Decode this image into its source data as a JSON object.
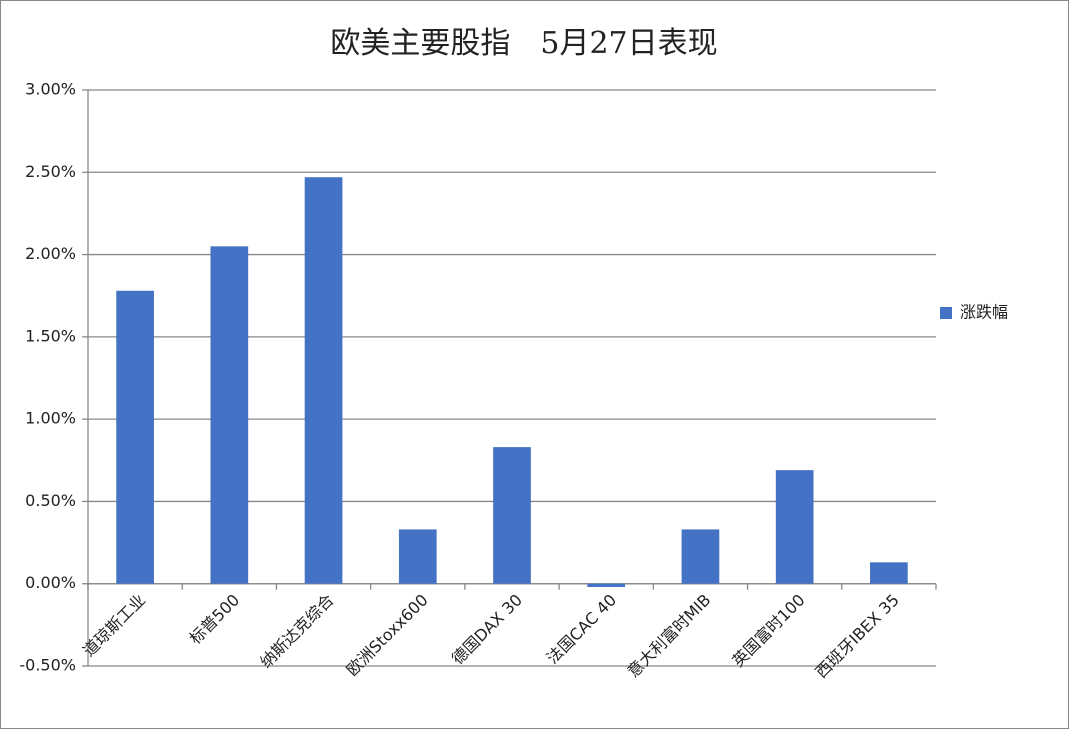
{
  "chart_data": {
    "type": "bar",
    "title": "欧美主要股指　5月27日表现",
    "categories": [
      "道琼斯工业",
      "标普500",
      "纳斯达克综合",
      "欧洲Stoxx600",
      "德国DAX 30",
      "法国CAC 40",
      "意大利富时MIB",
      "英国富时100",
      "西班牙IBEX 35"
    ],
    "series": [
      {
        "name": "涨跌幅",
        "color": "#4472c4",
        "values": [
          1.78,
          2.05,
          2.47,
          0.33,
          0.83,
          -0.02,
          0.33,
          0.69,
          0.13
        ]
      }
    ],
    "ylim": [
      -0.5,
      3
    ],
    "yticks": [
      {
        "value": -0.5,
        "label": "-0.50%"
      },
      {
        "value": 0,
        "label": "0.00%"
      },
      {
        "value": 0.5,
        "label": "0.50%"
      },
      {
        "value": 1,
        "label": "1.00%"
      },
      {
        "value": 1.5,
        "label": "1.50%"
      },
      {
        "value": 2,
        "label": "2.00%"
      },
      {
        "value": 2.5,
        "label": "2.50%"
      },
      {
        "value": 3,
        "label": "3.00%"
      }
    ],
    "grid": true,
    "legend": "right"
  }
}
